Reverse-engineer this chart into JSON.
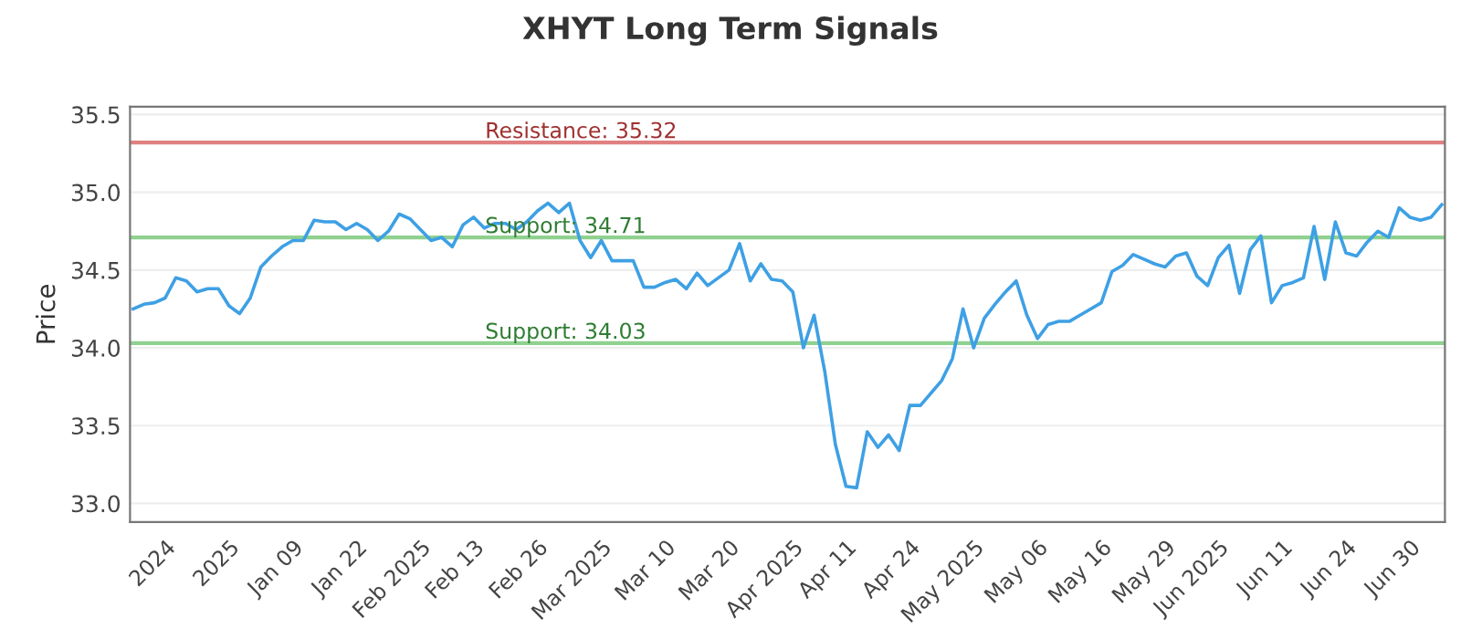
{
  "chart_data": {
    "type": "line",
    "title": "XHYT Long Term Signals",
    "ylabel": "Price",
    "categories": [
      null,
      null,
      null,
      "2024",
      null,
      null,
      null,
      null,
      null,
      "2025",
      null,
      null,
      null,
      null,
      null,
      "Jan 09",
      null,
      null,
      null,
      null,
      null,
      "Jan 22",
      null,
      null,
      null,
      null,
      null,
      "Feb 2025",
      null,
      null,
      null,
      null,
      "Feb 13",
      null,
      null,
      null,
      null,
      null,
      "Feb 26",
      null,
      null,
      null,
      null,
      null,
      "Mar 2025",
      null,
      null,
      null,
      null,
      null,
      "Mar 10",
      null,
      null,
      null,
      null,
      null,
      "Mar 20",
      null,
      null,
      null,
      null,
      null,
      "Apr 2025",
      null,
      null,
      null,
      null,
      "Apr 11",
      null,
      null,
      null,
      null,
      null,
      "Apr 24",
      null,
      null,
      null,
      null,
      null,
      "May 2025",
      null,
      null,
      null,
      null,
      null,
      "May 06",
      null,
      null,
      null,
      null,
      null,
      "May 16",
      null,
      null,
      null,
      null,
      null,
      "May 29",
      null,
      null,
      null,
      null,
      "Jun 2025",
      null,
      null,
      null,
      null,
      null,
      "Jun 11",
      null,
      null,
      null,
      null,
      null,
      "Jun 24",
      null,
      null,
      null,
      null,
      null,
      "Jun 30",
      null,
      null,
      null
    ],
    "series": [
      {
        "color": "#3ea0e4",
        "values": [
          34.25,
          34.28,
          34.29,
          34.32,
          34.45,
          34.43,
          34.36,
          34.38,
          34.38,
          34.27,
          34.22,
          34.32,
          34.52,
          34.59,
          34.65,
          34.69,
          34.69,
          34.82,
          34.81,
          34.81,
          34.76,
          34.8,
          34.76,
          34.69,
          34.75,
          34.86,
          34.83,
          34.76,
          34.69,
          34.71,
          34.65,
          34.79,
          34.84,
          34.77,
          34.8,
          34.8,
          34.76,
          34.81,
          34.88,
          34.93,
          34.87,
          34.93,
          34.69,
          34.58,
          34.69,
          34.56,
          34.56,
          34.56,
          34.39,
          34.39,
          34.42,
          34.44,
          34.38,
          34.48,
          34.4,
          34.45,
          34.5,
          34.67,
          34.43,
          34.54,
          34.44,
          34.43,
          34.36,
          34.0,
          34.21,
          33.85,
          33.38,
          33.11,
          33.1,
          33.46,
          33.36,
          33.44,
          33.34,
          33.63,
          33.63,
          33.71,
          33.79,
          33.93,
          34.25,
          34.0,
          34.19,
          34.28,
          34.36,
          34.43,
          34.21,
          34.06,
          34.15,
          34.17,
          34.17,
          34.21,
          34.25,
          34.29,
          34.49,
          34.53,
          34.6,
          34.57,
          34.54,
          34.52,
          34.59,
          34.61,
          34.46,
          34.4,
          34.58,
          34.66,
          34.35,
          34.63,
          34.72,
          34.29,
          34.4,
          34.42,
          34.45,
          34.78,
          34.44,
          34.81,
          34.61,
          34.59,
          34.68,
          34.75,
          34.71,
          34.9,
          34.84,
          34.82,
          34.84,
          34.92
        ]
      }
    ],
    "ylim": [
      32.88,
      35.55
    ],
    "yticks": [
      {
        "value": 33.0,
        "label": "33.0"
      },
      {
        "value": 33.5,
        "label": "33.5"
      },
      {
        "value": 34.0,
        "label": "34.0"
      },
      {
        "value": 34.5,
        "label": "34.5"
      },
      {
        "value": 35.0,
        "label": "35.0"
      },
      {
        "value": 35.5,
        "label": "35.5"
      }
    ],
    "grid": "y",
    "ref_lines": [
      {
        "axis": "y",
        "value": 35.32,
        "label": "Resistance: 35.32",
        "color": "#e08080"
      },
      {
        "axis": "y",
        "value": 34.71,
        "label": "Support: 34.71",
        "color": "#8fd18f"
      },
      {
        "axis": "y",
        "value": 34.03,
        "label": "Support: 34.03",
        "color": "#8fd18f"
      }
    ]
  }
}
